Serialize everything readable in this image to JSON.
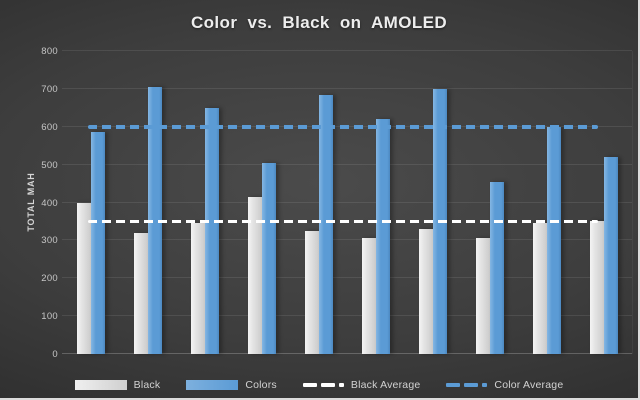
{
  "title": "Color vs. Black on AMOLED",
  "chart_data": {
    "type": "bar",
    "title": "Color vs. Black on AMOLED",
    "categories": [
      "",
      "",
      "",
      "",
      "",
      "",
      "",
      "",
      "",
      ""
    ],
    "n_categories": 10,
    "x_axis_labels_visible": false,
    "series": [
      {
        "name": "Black",
        "color": "#d9d9d9",
        "values": [
          400,
          320,
          345,
          415,
          325,
          305,
          330,
          305,
          345,
          350
        ]
      },
      {
        "name": "Colors",
        "color": "#5b9bd5",
        "values": [
          585,
          705,
          650,
          505,
          685,
          620,
          700,
          455,
          600,
          520
        ]
      }
    ],
    "average_lines": [
      {
        "name": "Black Average",
        "value": 350,
        "color": "#ffffff",
        "style": "dashed"
      },
      {
        "name": "Color Average",
        "value": 600,
        "color": "#5b9bd5",
        "style": "dashed"
      }
    ],
    "xlabel": "",
    "ylabel": "TOTAL MAH",
    "ylim": [
      0,
      800
    ],
    "yticks": [
      0,
      100,
      200,
      300,
      400,
      500,
      600,
      700,
      800
    ],
    "grid": "horizontal",
    "legend_position": "bottom",
    "legend_items": [
      "Black",
      "Colors",
      "Black Average",
      "Color Average"
    ]
  },
  "colors": {
    "background_center": "#4b4b4b",
    "background_edge": "#232323",
    "bar_black": "#d9d9d9",
    "bar_colors": "#5b9bd5",
    "black_average_line": "#ffffff",
    "color_average_line": "#5b9bd5",
    "gridline": "rgba(255,255,255,0.09)",
    "text": "#d2d2d2",
    "frame_border": "#dcdcdc"
  }
}
